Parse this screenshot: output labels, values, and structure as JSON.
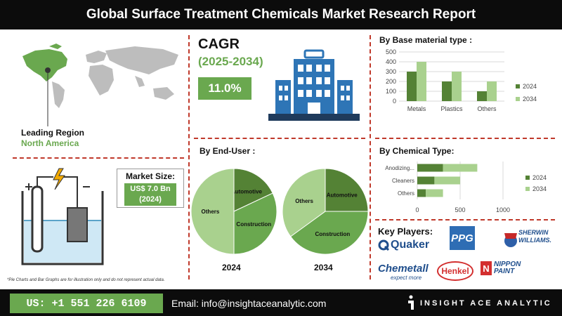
{
  "title": "Global Surface Treatment Chemicals Market Research Report",
  "cagr": {
    "label": "CAGR",
    "years": "(2025-2034)",
    "value": "11.0%"
  },
  "leading_region": {
    "label": "Leading Region",
    "value": "North America"
  },
  "market_size": {
    "label": "Market Size:",
    "value_line1": "US$ 7.0 Bn",
    "value_line2": "(2024)"
  },
  "sections": {
    "base_material": "By Base material type :",
    "end_user": "By End-User :",
    "chemical_type": "By Chemical Type:",
    "key_players": "Key Players:"
  },
  "players": {
    "quaker": "Quaker",
    "ppg": "PPG",
    "sherwin1": "SHERWIN",
    "sherwin2": "WILLIAMS.",
    "chemetall": "Chemetall",
    "chemetall_tag": "expect more",
    "henkel": "Henkel",
    "nippon1": "NIPPON",
    "nippon2": "PAINT"
  },
  "disclaimer": "*Pie Charts and Bar Graphs are for illustration only and do not represent actual data.",
  "footer": {
    "phone": "US: +1 551 226 6109",
    "email": "Email: info@insightaceanalytic.com",
    "brand": "INSIGHT ACE ANALYTIC"
  },
  "colors": {
    "dark_green": "#548235",
    "light_green": "#a9d18e",
    "accent_green": "#6aa84f",
    "divider_red": "#c0392b",
    "building_blue": "#2e75b6"
  },
  "chart_data": [
    {
      "type": "bar",
      "title": "By Base material type :",
      "categories": [
        "Metals",
        "Plastics",
        "Others"
      ],
      "series": [
        {
          "name": "2024",
          "values": [
            300,
            200,
            100
          ]
        },
        {
          "name": "2034",
          "values": [
            400,
            300,
            200
          ]
        }
      ],
      "ylim": [
        0,
        500
      ],
      "yticks": [
        0,
        100,
        200,
        300,
        400,
        500
      ],
      "legend": "right",
      "grid": true
    },
    {
      "type": "bar",
      "orientation": "horizontal",
      "title": "By Chemical Type:",
      "categories": [
        "Anodizing...",
        "Cleaners",
        "Others"
      ],
      "series": [
        {
          "name": "2024",
          "values": [
            300,
            200,
            100
          ]
        },
        {
          "name": "2034",
          "values": [
            400,
            300,
            200
          ]
        }
      ],
      "xlim": [
        0,
        1000
      ],
      "xticks": [
        0,
        500,
        1000
      ],
      "stacked": true,
      "legend": "right",
      "grid": true
    },
    {
      "type": "pie",
      "label": "2024",
      "slices": [
        {
          "name": "Automotive",
          "value": 18
        },
        {
          "name": "Construction",
          "value": 32
        },
        {
          "name": "Others",
          "value": 50
        }
      ]
    },
    {
      "type": "pie",
      "label": "2034",
      "slices": [
        {
          "name": "Automotive",
          "value": 25
        },
        {
          "name": "Construction",
          "value": 40
        },
        {
          "name": "Others",
          "value": 35
        }
      ]
    }
  ]
}
